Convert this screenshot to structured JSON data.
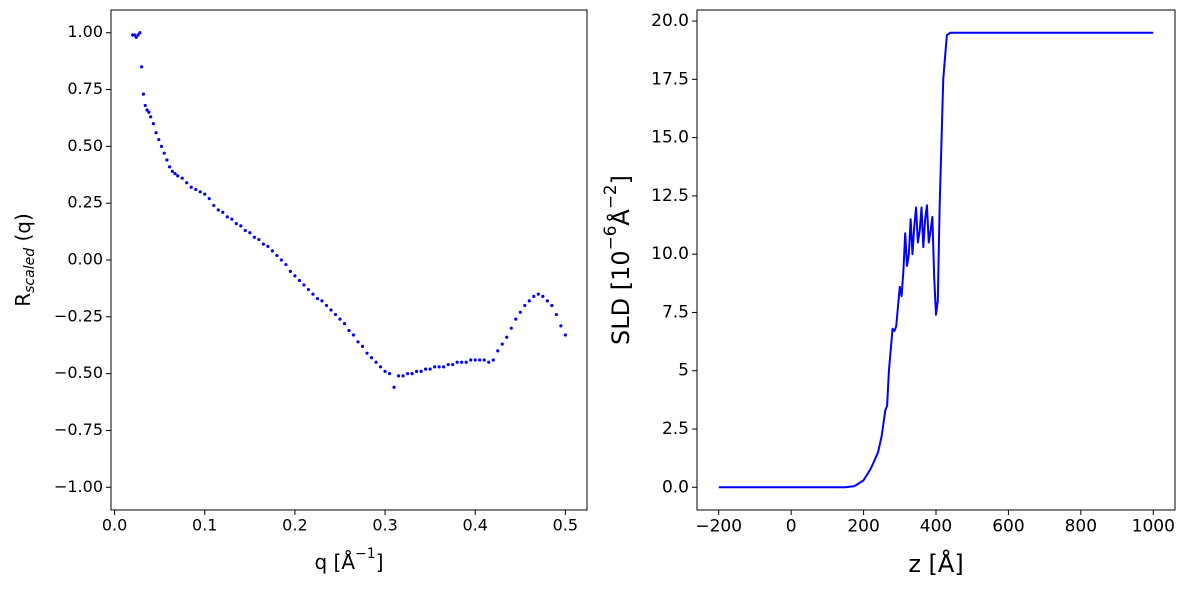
{
  "chart_data": [
    {
      "type": "scatter",
      "color": "#0000ff",
      "xlabel": [
        {
          "text": "q [Å"
        },
        {
          "text": "−1",
          "sup": true
        },
        {
          "text": "]"
        }
      ],
      "ylabel": [
        {
          "text": "R"
        },
        {
          "text": "scaled",
          "sub": true
        },
        {
          "text": " (q)"
        }
      ],
      "xlim": [
        -0.004,
        0.524
      ],
      "ylim": [
        -1.1,
        1.1
      ],
      "xticks": [
        {
          "value": 0,
          "label": "0.0"
        },
        {
          "value": 0.1,
          "label": "0.1"
        },
        {
          "value": 0.2,
          "label": "0.2"
        },
        {
          "value": 0.3,
          "label": "0.3"
        },
        {
          "value": 0.4,
          "label": "0.4"
        },
        {
          "value": 0.5,
          "label": "0.5"
        }
      ],
      "yticks": [
        {
          "value": -1,
          "label": "−1.00"
        },
        {
          "value": -0.75,
          "label": "−0.75"
        },
        {
          "value": -0.5,
          "label": "−0.50"
        },
        {
          "value": -0.25,
          "label": "−0.25"
        },
        {
          "value": 0,
          "label": "0.00"
        },
        {
          "value": 0.25,
          "label": "0.25"
        },
        {
          "value": 0.5,
          "label": "0.50"
        },
        {
          "value": 0.75,
          "label": "0.75"
        },
        {
          "value": 1,
          "label": "1.00"
        }
      ],
      "x": [
        0.02,
        0.022,
        0.024,
        0.026,
        0.028,
        0.03,
        0.032,
        0.034,
        0.036,
        0.038,
        0.04,
        0.043,
        0.046,
        0.049,
        0.052,
        0.055,
        0.058,
        0.061,
        0.064,
        0.067,
        0.07,
        0.075,
        0.08,
        0.085,
        0.09,
        0.095,
        0.1,
        0.105,
        0.11,
        0.115,
        0.12,
        0.125,
        0.13,
        0.135,
        0.14,
        0.145,
        0.15,
        0.155,
        0.16,
        0.165,
        0.17,
        0.175,
        0.18,
        0.185,
        0.19,
        0.195,
        0.2,
        0.205,
        0.21,
        0.215,
        0.22,
        0.225,
        0.23,
        0.235,
        0.24,
        0.245,
        0.25,
        0.255,
        0.26,
        0.265,
        0.27,
        0.275,
        0.28,
        0.285,
        0.29,
        0.295,
        0.3,
        0.305,
        0.31,
        0.315,
        0.32,
        0.325,
        0.33,
        0.335,
        0.34,
        0.345,
        0.35,
        0.355,
        0.36,
        0.365,
        0.37,
        0.375,
        0.38,
        0.385,
        0.39,
        0.395,
        0.4,
        0.405,
        0.41,
        0.415,
        0.42,
        0.425,
        0.43,
        0.435,
        0.44,
        0.445,
        0.45,
        0.455,
        0.46,
        0.465,
        0.47,
        0.475,
        0.48,
        0.485,
        0.49,
        0.495,
        0.5
      ],
      "values": [
        0.99,
        0.99,
        0.98,
        0.99,
        1.0,
        0.85,
        0.73,
        0.68,
        0.66,
        0.65,
        0.63,
        0.6,
        0.56,
        0.53,
        0.5,
        0.47,
        0.44,
        0.41,
        0.39,
        0.38,
        0.37,
        0.36,
        0.34,
        0.32,
        0.31,
        0.3,
        0.29,
        0.27,
        0.24,
        0.22,
        0.21,
        0.19,
        0.18,
        0.16,
        0.15,
        0.13,
        0.12,
        0.1,
        0.09,
        0.07,
        0.06,
        0.04,
        0.02,
        0.0,
        -0.02,
        -0.05,
        -0.07,
        -0.09,
        -0.11,
        -0.13,
        -0.15,
        -0.17,
        -0.18,
        -0.2,
        -0.22,
        -0.24,
        -0.26,
        -0.28,
        -0.31,
        -0.33,
        -0.36,
        -0.38,
        -0.41,
        -0.43,
        -0.45,
        -0.47,
        -0.49,
        -0.5,
        -0.56,
        -0.51,
        -0.51,
        -0.5,
        -0.5,
        -0.49,
        -0.49,
        -0.48,
        -0.48,
        -0.47,
        -0.47,
        -0.47,
        -0.46,
        -0.46,
        -0.45,
        -0.45,
        -0.45,
        -0.44,
        -0.44,
        -0.44,
        -0.44,
        -0.45,
        -0.44,
        -0.4,
        -0.37,
        -0.34,
        -0.3,
        -0.26,
        -0.23,
        -0.2,
        -0.18,
        -0.16,
        -0.15,
        -0.16,
        -0.18,
        -0.2,
        -0.24,
        -0.29,
        -0.33
      ]
    },
    {
      "type": "line",
      "color": "#0000ff",
      "xlabel": [
        {
          "text": "z [Å]"
        }
      ],
      "ylabel": [
        {
          "text": "SLD [10"
        },
        {
          "text": "−6",
          "sup": true
        },
        {
          "text": "Å"
        },
        {
          "text": "−2",
          "sup": true
        },
        {
          "text": "]"
        }
      ],
      "xlim": [
        -260,
        1060
      ],
      "ylim": [
        -0.975,
        20.475
      ],
      "xticks": [
        {
          "value": -200,
          "label": "−200"
        },
        0,
        200,
        400,
        600,
        800,
        1000
      ],
      "yticks": [
        {
          "value": 0,
          "label": "0.0"
        },
        2.5,
        5,
        7.5,
        {
          "value": 10,
          "label": "10.0"
        },
        12.5,
        {
          "value": 15,
          "label": "15.0"
        },
        17.5,
        {
          "value": 20,
          "label": "20.0"
        }
      ],
      "x": [
        -200,
        0,
        150,
        175,
        200,
        220,
        240,
        250,
        260,
        265,
        270,
        280,
        285,
        290,
        300,
        305,
        310,
        315,
        320,
        325,
        330,
        335,
        340,
        345,
        350,
        355,
        360,
        365,
        370,
        375,
        380,
        385,
        390,
        395,
        400,
        405,
        410,
        420,
        430,
        440,
        1000
      ],
      "values": [
        0,
        0,
        0,
        0.05,
        0.3,
        0.8,
        1.5,
        2.2,
        3.3,
        3.5,
        5.0,
        6.8,
        6.7,
        6.9,
        8.6,
        8.2,
        9.3,
        10.9,
        9.5,
        10.0,
        11.5,
        10.0,
        11.2,
        12.0,
        10.5,
        11.0,
        12.0,
        10.3,
        11.5,
        12.1,
        10.5,
        11.0,
        11.6,
        9.0,
        7.4,
        8.0,
        12.0,
        17.5,
        19.4,
        19.5,
        19.5
      ]
    }
  ]
}
